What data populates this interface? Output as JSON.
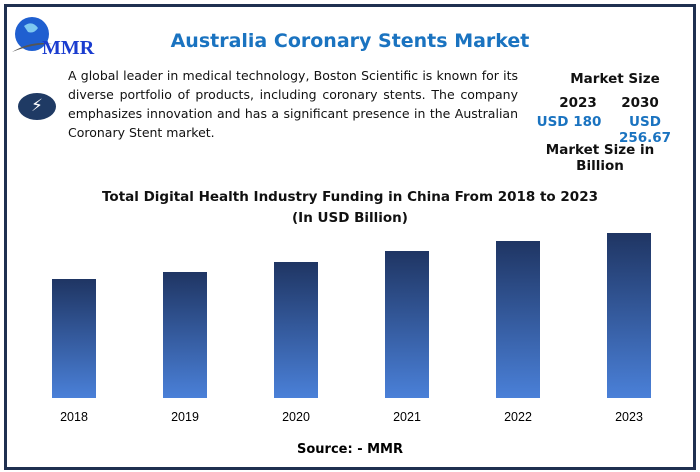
{
  "header": {
    "logo_text": "MMR",
    "title": "Australia Coronary Stents Market"
  },
  "description": "A global leader in medical technology, Boston Scientific is known for its diverse portfolio of products, including coronary stents. The company emphasizes innovation and has a significant presence in the Australian Coronary Stent market.",
  "icon": "lightning-bolt-icon",
  "market_size": {
    "heading": "Market Size",
    "years": [
      "2023",
      "2030"
    ],
    "values": [
      "USD 180",
      "USD 256.67"
    ],
    "unit_note": "Market Size in Billion"
  },
  "colors": {
    "accent": "#1a73c0",
    "frame": "#1f3050",
    "bar_top": "#1f3563",
    "bar_bottom": "#4a80d8"
  },
  "chart_data": {
    "type": "bar",
    "title": "Total Digital Health Industry Funding in China From 2018 to 2023",
    "subtitle": "(In USD Billion)",
    "categories": [
      "2018",
      "2019",
      "2020",
      "2021",
      "2022",
      "2023"
    ],
    "values": [
      11.9,
      12.6,
      13.6,
      14.7,
      15.7,
      16.5
    ],
    "xlabel": "",
    "ylabel": "",
    "grid": false,
    "ylim": [
      0,
      16.5
    ]
  },
  "source": "Source: - MMR"
}
